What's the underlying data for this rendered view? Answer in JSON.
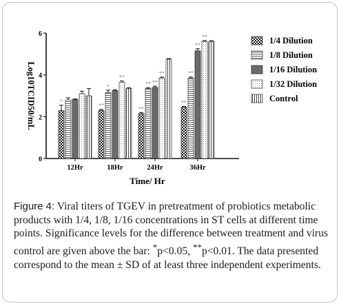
{
  "chart_data": {
    "type": "bar",
    "categories": [
      "12Hr",
      "18Hr",
      "24Hr",
      "36Hr"
    ],
    "xlabel": "Time/ Hr",
    "ylabel": "Log10TCID50/mL",
    "ylim": [
      0,
      6
    ],
    "yticks": [
      "0",
      "2",
      "4",
      "6"
    ],
    "legend_position": "top-right",
    "series": [
      {
        "name": "1/4 Dilution",
        "pattern": "checker",
        "values": [
          2.3,
          2.3,
          2.15,
          2.45
        ],
        "errors": [
          0.25,
          0.05,
          0.05,
          0.04
        ],
        "significance": [
          "*",
          "**",
          "**",
          "**"
        ]
      },
      {
        "name": "1/8 Dilution",
        "pattern": "hlines",
        "values": [
          2.8,
          3.15,
          3.35,
          3.85
        ],
        "errors": [
          0.1,
          0.12,
          0.04,
          0.05
        ],
        "significance": [
          "",
          "*",
          "**",
          "**"
        ]
      },
      {
        "name": "1/16 Dilution",
        "pattern": "solid",
        "values": [
          2.82,
          3.25,
          3.4,
          5.15
        ],
        "errors": [
          0.03,
          0.04,
          0.06,
          0.1
        ],
        "significance": [
          "",
          "",
          "**",
          "**"
        ]
      },
      {
        "name": "1/32  Dilution",
        "pattern": "dots",
        "values": [
          3.1,
          3.65,
          3.85,
          5.6
        ],
        "errors": [
          0.12,
          0.06,
          0.04,
          0.04
        ],
        "significance": [
          "",
          "**",
          "**",
          "**"
        ]
      },
      {
        "name": "Control",
        "pattern": "vlines",
        "values": [
          3.0,
          3.35,
          4.75,
          5.6
        ],
        "errors": [
          0.35,
          0.04,
          0.03,
          0.04
        ],
        "significance": [
          "",
          "",
          "",
          ""
        ]
      }
    ]
  },
  "caption": {
    "label": "Figure 4:",
    "line1": " Viral titers of TGEV in pretreatment of probiotics metabolic products with 1/4, 1/8, 1/16 concentrations in ST cells at different time points. Significance levels for the difference between treatment and virus control are given above the bar: ",
    "sig1_mark": "*",
    "sig1_text": "p<0.05, ",
    "sig2_mark": "**",
    "sig2_text": "p<0.01. The data presented correspond to the mean ± SD of at least three independent experiments."
  }
}
